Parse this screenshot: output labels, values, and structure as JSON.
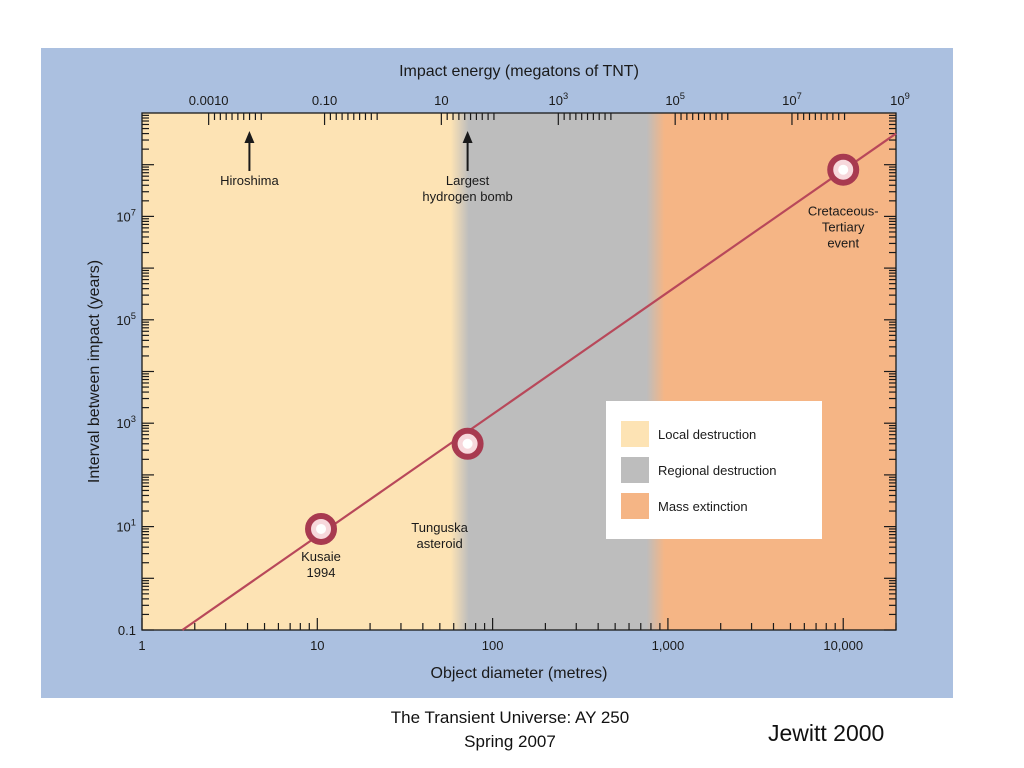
{
  "chart_data": {
    "type": "line",
    "title": "Impact energy (megatons of TNT)",
    "xlabel": "Object diameter (metres)",
    "ylabel": "Interval between impact (years)",
    "x_scale": "log",
    "y_scale": "log",
    "xlim": [
      1,
      20000
    ],
    "ylim": [
      0.1,
      1000000000
    ],
    "x_ticks": [
      {
        "value": 1,
        "label": "1"
      },
      {
        "value": 10,
        "label": "10"
      },
      {
        "value": 100,
        "label": "100"
      },
      {
        "value": 1000,
        "label": "1,000"
      },
      {
        "value": 10000,
        "label": "10,000"
      }
    ],
    "y_ticks": [
      {
        "value": 0.1,
        "base": "0.1",
        "exp": ""
      },
      {
        "value": 10,
        "base": "10",
        "exp": "1"
      },
      {
        "value": 1000,
        "base": "10",
        "exp": "3"
      },
      {
        "value": 100000,
        "base": "10",
        "exp": "5"
      },
      {
        "value": 10000000,
        "base": "10",
        "exp": "7"
      }
    ],
    "top_ticks": [
      {
        "diameter": 2.4,
        "base": "0.0010",
        "exp": ""
      },
      {
        "diameter": 11,
        "base": "0.10",
        "exp": ""
      },
      {
        "diameter": 51,
        "base": "10",
        "exp": ""
      },
      {
        "diameter": 237,
        "base": "10",
        "exp": "3"
      },
      {
        "diameter": 1100,
        "base": "10",
        "exp": "5"
      },
      {
        "diameter": 5100,
        "base": "10",
        "exp": "7"
      },
      {
        "diameter": 23600,
        "base": "10",
        "exp": "9"
      }
    ],
    "series": [
      {
        "x": [
          1.7,
          20000
        ],
        "y": [
          0.1,
          400000000
        ],
        "color": "#b8485a"
      }
    ],
    "points": [
      {
        "x": 10.5,
        "y": 9,
        "label_lines": [
          "Kusaie",
          "1994"
        ],
        "label_pos": "below"
      },
      {
        "x": 72,
        "y": 400,
        "label_lines": [
          "Tunguska",
          "asteroid"
        ],
        "label_pos": "below"
      },
      {
        "x": 10000,
        "y": 80000000,
        "label_lines": [
          "Cretaceous-",
          "Tertiary",
          "event"
        ],
        "label_pos": "below"
      }
    ],
    "annotations": [
      {
        "diameter": 4.1,
        "label_lines": [
          "Hiroshima"
        ]
      },
      {
        "diameter": 72,
        "label_lines": [
          "Largest",
          "hydrogen bomb"
        ]
      }
    ],
    "regions": [
      {
        "name": "Local destruction",
        "from": 1,
        "to": 65,
        "color": "#fde3b4"
      },
      {
        "name": "Regional destruction",
        "from": 65,
        "to": 850,
        "color": "#bdbdbd"
      },
      {
        "name": "Mass extinction",
        "from": 850,
        "to": 20000,
        "color": "#f5b585"
      }
    ],
    "legend_position": "lower-right"
  },
  "colors": {
    "panel": "#abc0e0",
    "line": "#b8485a",
    "marker_ring": "#a83a50"
  },
  "footer": {
    "line1": "The Transient Universe:  AY 250",
    "line2": "Spring 2007"
  },
  "credit": "Jewitt 2000"
}
